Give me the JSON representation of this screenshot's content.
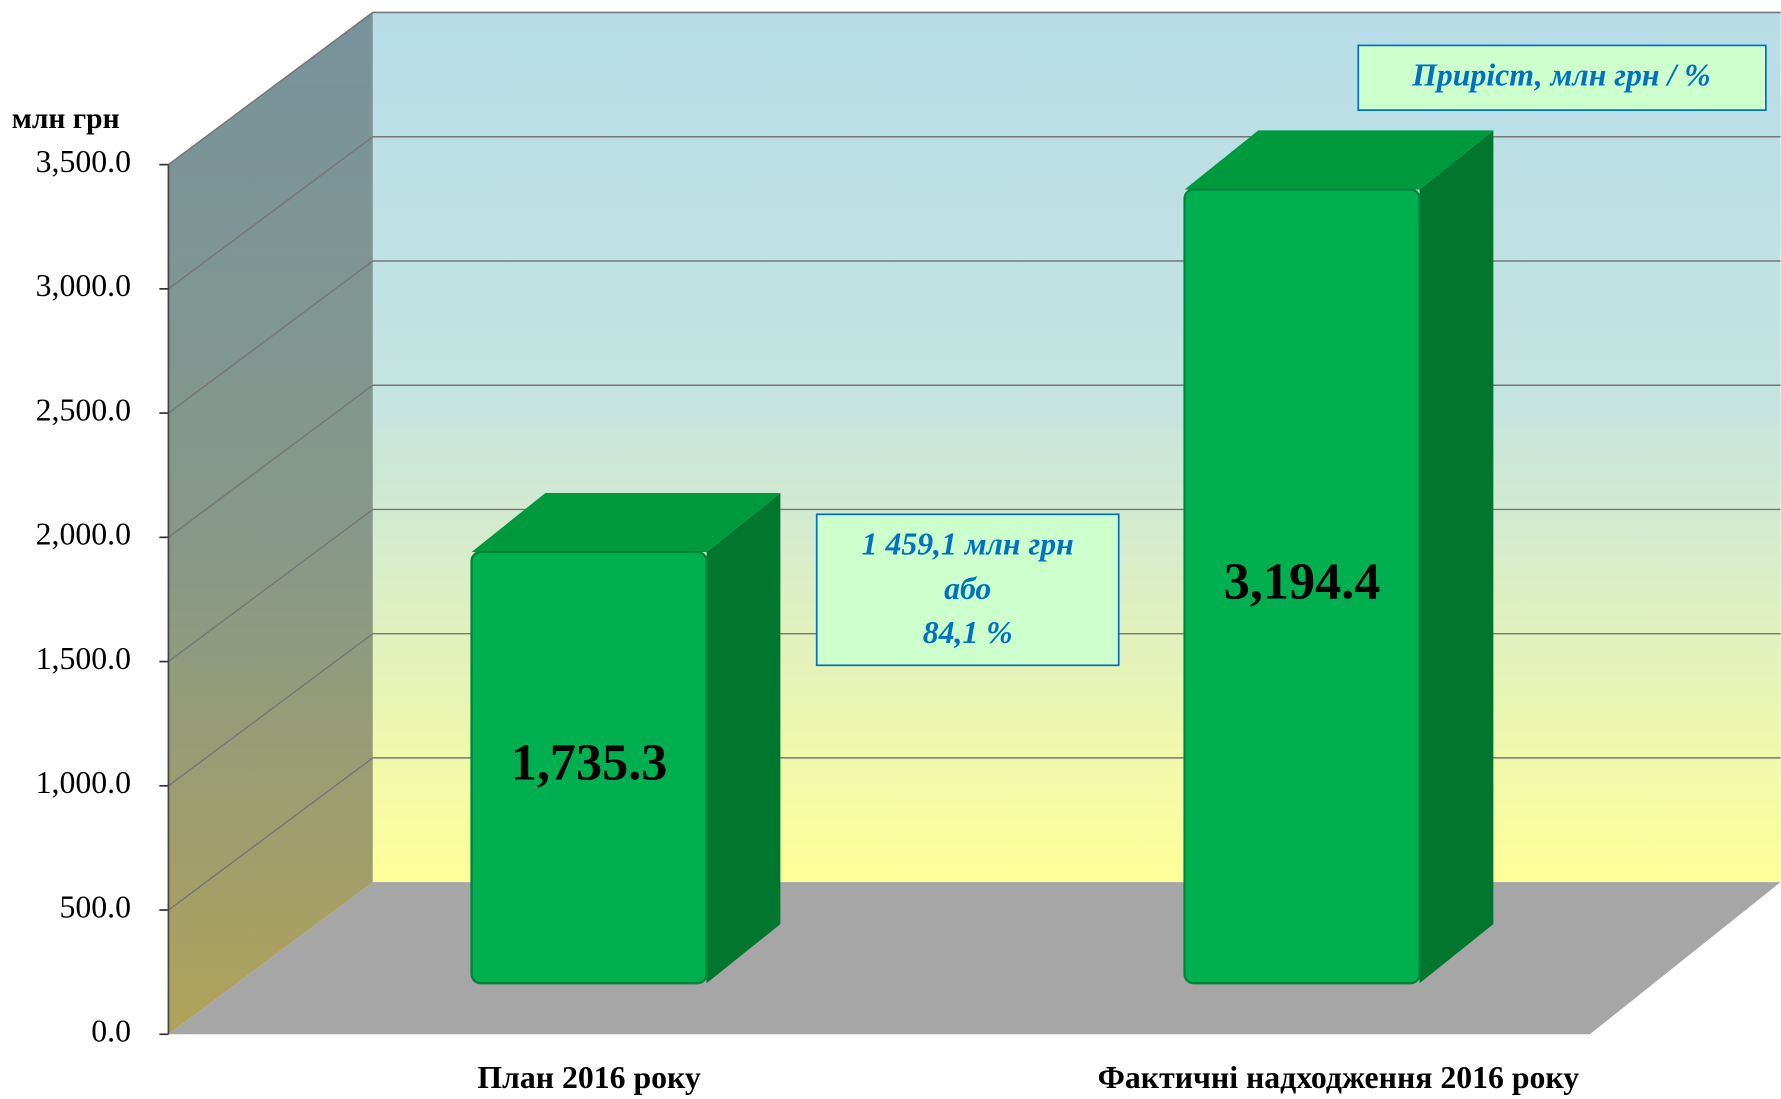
{
  "chart_data": {
    "type": "bar3d",
    "y_axis_label": "млн грн",
    "categories": [
      "План 2016 року",
      "Фактичні надходження 2016 року"
    ],
    "values": [
      1735.3,
      3194.4
    ],
    "value_labels": [
      "1,735.3",
      "3,194.4"
    ],
    "color": "#00b050",
    "ylim": [
      0,
      3500
    ],
    "yticks": [
      {
        "value": 0,
        "label": "0.0"
      },
      {
        "value": 500,
        "label": "500.0"
      },
      {
        "value": 1000,
        "label": "1,000.0"
      },
      {
        "value": 1500,
        "label": "1,500.0"
      },
      {
        "value": 2000,
        "label": "2,000.0"
      },
      {
        "value": 2500,
        "label": "2,500.0"
      },
      {
        "value": 3000,
        "label": "3,000.0"
      },
      {
        "value": 3500,
        "label": "3,500.0"
      }
    ],
    "grid": true,
    "annotations": [
      {
        "text": "Приріст, млн грн / %"
      },
      {
        "lines": [
          "1 459,1 млн грн",
          "або",
          "84,1 %"
        ]
      }
    ]
  }
}
